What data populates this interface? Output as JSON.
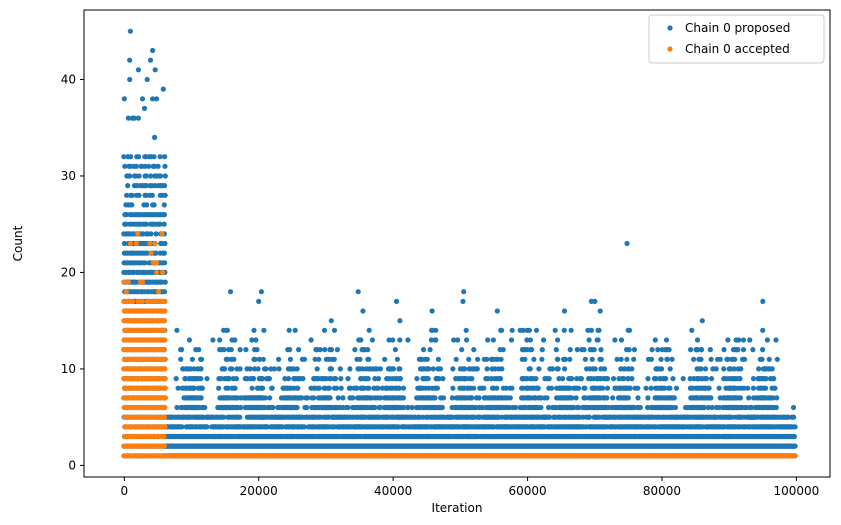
{
  "chart_data": {
    "type": "scatter",
    "title": "",
    "xlabel": "Iteration",
    "ylabel": "Count",
    "xlim": [
      -6000,
      105000
    ],
    "ylim": [
      -1.2,
      47.2
    ],
    "xticks": [
      0,
      20000,
      40000,
      60000,
      80000,
      100000
    ],
    "xtick_labels": [
      "0",
      "20000",
      "40000",
      "60000",
      "80000",
      "100000"
    ],
    "yticks": [
      0,
      10,
      20,
      30,
      40
    ],
    "ytick_labels": [
      "0",
      "10",
      "20",
      "30",
      "40"
    ],
    "grid": false,
    "legend": "top-right",
    "x_range": [
      0,
      99800
    ],
    "series": [
      {
        "name": "Chain 0 proposed",
        "color": "#1f77b4",
        "description_points": [
          {
            "x": 900,
            "y": 45
          },
          {
            "x": 4200,
            "y": 43
          },
          {
            "x": 800,
            "y": 42
          },
          {
            "x": 3900,
            "y": 42
          },
          {
            "x": 2100,
            "y": 41
          },
          {
            "x": 4600,
            "y": 41
          },
          {
            "x": 800,
            "y": 40
          },
          {
            "x": 3400,
            "y": 40
          },
          {
            "x": 5800,
            "y": 39
          },
          {
            "x": 74800,
            "y": 23
          },
          {
            "x": 15800,
            "y": 18
          },
          {
            "x": 20400,
            "y": 18
          },
          {
            "x": 34800,
            "y": 18
          },
          {
            "x": 50500,
            "y": 18
          },
          {
            "x": 20000,
            "y": 17
          },
          {
            "x": 40500,
            "y": 17
          },
          {
            "x": 50400,
            "y": 17
          },
          {
            "x": 69500,
            "y": 17
          },
          {
            "x": 70000,
            "y": 17
          },
          {
            "x": 95000,
            "y": 17
          },
          {
            "x": 35500,
            "y": 16
          },
          {
            "x": 45800,
            "y": 16
          },
          {
            "x": 55500,
            "y": 16
          },
          {
            "x": 65500,
            "y": 16
          },
          {
            "x": 70800,
            "y": 16
          },
          {
            "x": 86000,
            "y": 15
          },
          {
            "x": 30800,
            "y": 15
          },
          {
            "x": 41000,
            "y": 15
          }
        ]
      },
      {
        "name": "Chain 0 accepted",
        "color": "#ff7f0e",
        "description_points": [
          {
            "x": 2000,
            "y": 24
          },
          {
            "x": 5600,
            "y": 24
          },
          {
            "x": 900,
            "y": 23
          },
          {
            "x": 1800,
            "y": 23
          },
          {
            "x": 3800,
            "y": 23
          },
          {
            "x": 4600,
            "y": 23
          },
          {
            "x": 4000,
            "y": 22
          },
          {
            "x": 4300,
            "y": 21
          },
          {
            "x": 4800,
            "y": 21
          }
        ]
      }
    ]
  }
}
